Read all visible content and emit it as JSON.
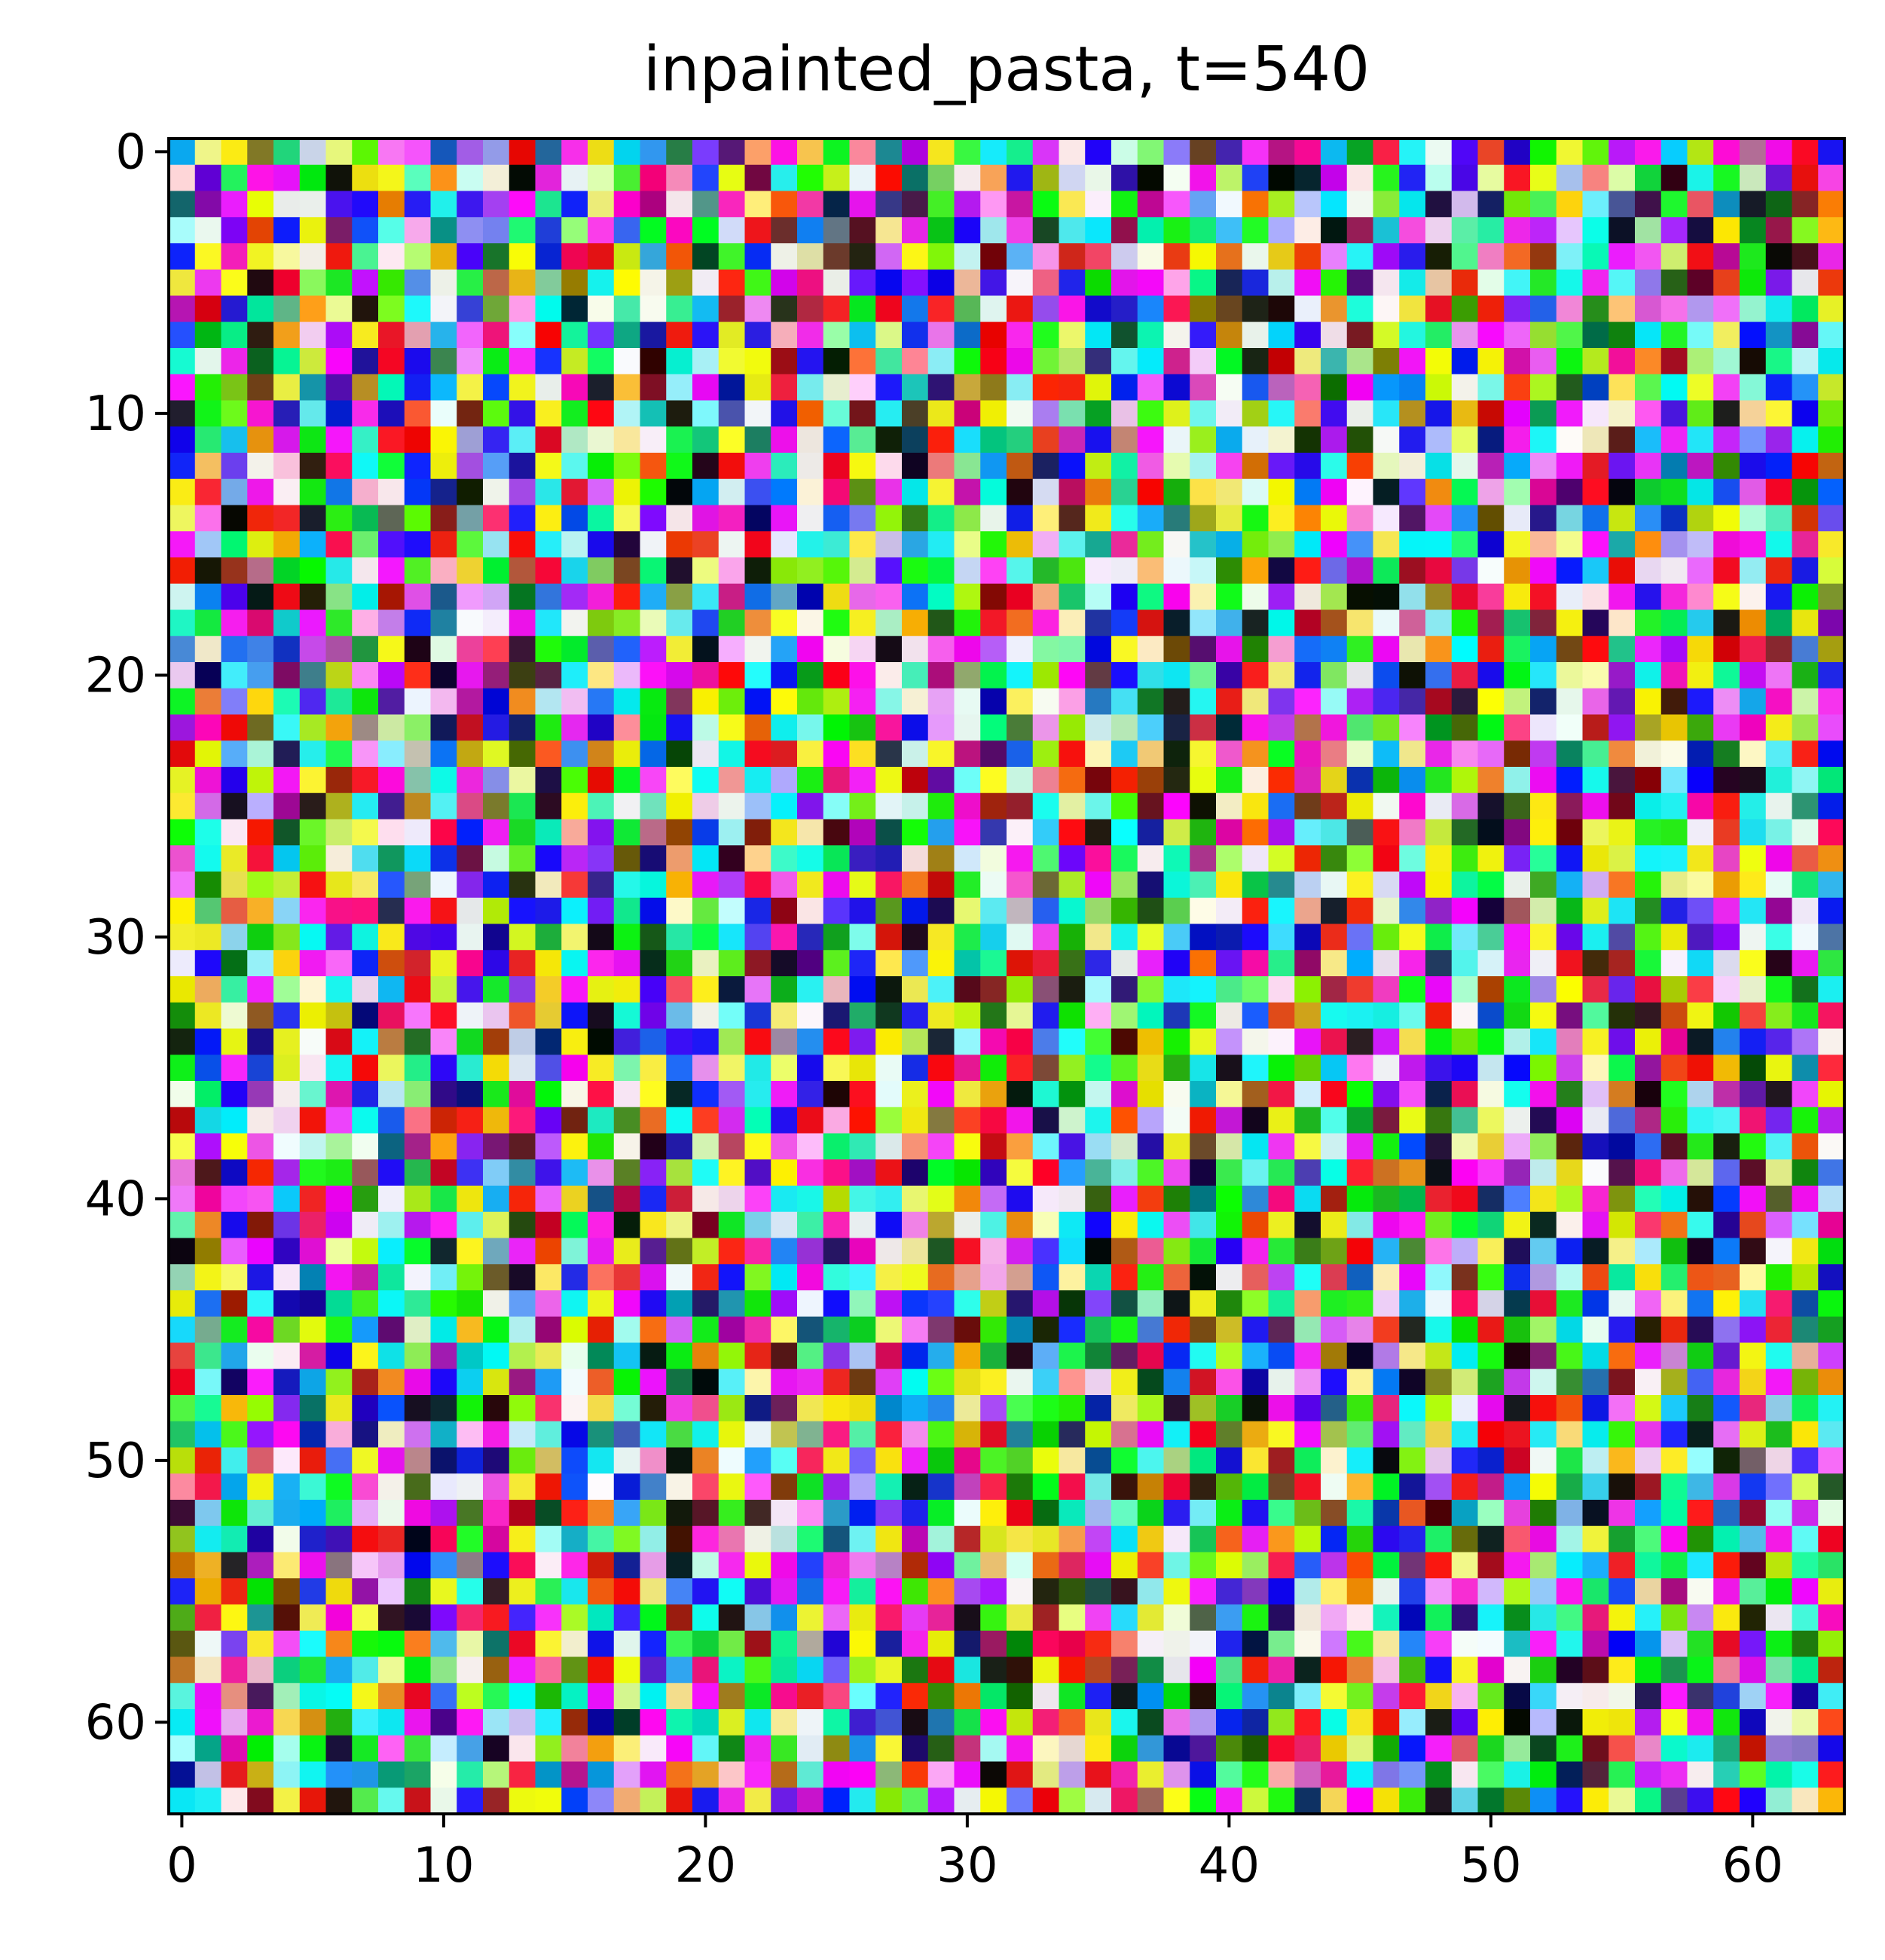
{
  "chart_data": {
    "type": "heatmap",
    "title": "inpainted_pasta, t=540",
    "xlabel": "",
    "ylabel": "",
    "image_shape": [
      64,
      64,
      3
    ],
    "pixel_content": "random RGB noise",
    "xlim": [
      -0.5,
      63.5
    ],
    "ylim": [
      63.5,
      -0.5
    ],
    "x_ticks": [
      0,
      10,
      20,
      30,
      40,
      50,
      60
    ],
    "y_ticks": [
      0,
      10,
      20,
      30,
      40,
      50,
      60
    ],
    "x_tick_labels": [
      "0",
      "10",
      "20",
      "30",
      "40",
      "50",
      "60"
    ],
    "y_tick_labels": [
      "0",
      "10",
      "20",
      "30",
      "40",
      "50",
      "60"
    ],
    "grid": false,
    "colors": {
      "axis": "#000000",
      "text": "#000000",
      "background": "#ffffff"
    }
  }
}
